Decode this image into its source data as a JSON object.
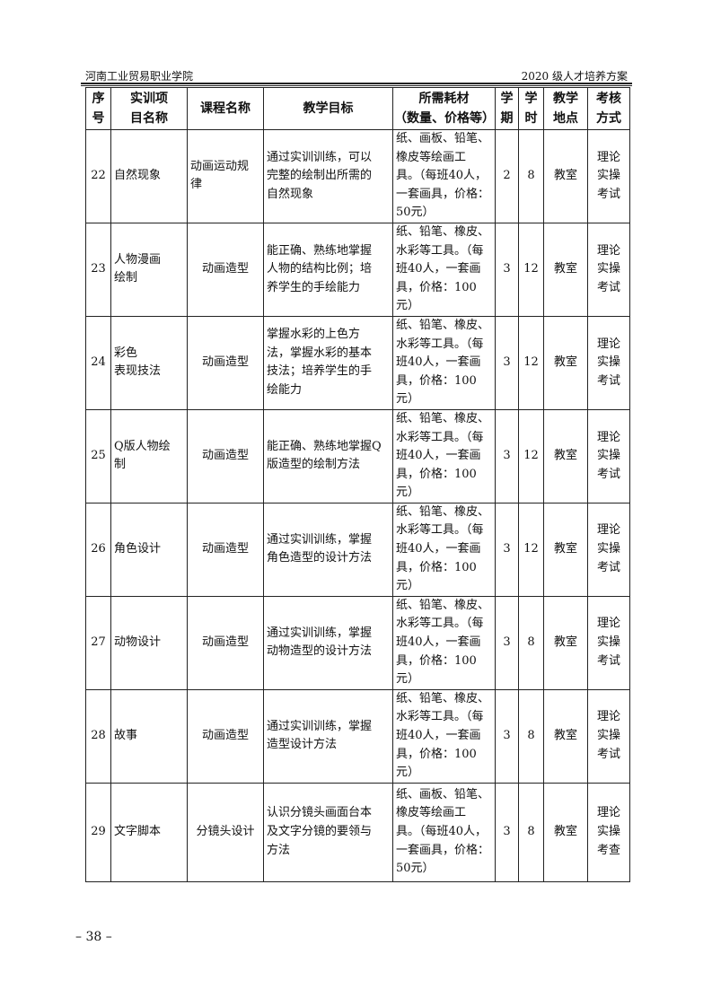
{
  "header": {
    "school": "河南工业贸易职业学院",
    "doc_title": "2020 级人才培养方案"
  },
  "table": {
    "columns": [
      "序\n号",
      "实训项\n目名称",
      "课程名称",
      "教学目标",
      "所需耗材\n（数量、价格等）",
      "学\n期",
      "学\n时",
      "教学\n地点",
      "考核\n方式"
    ],
    "rows": [
      {
        "no": "22",
        "project": "自然现象",
        "course": "动画运动规\n律",
        "goal": "通过实训训练，可以\n完整的绘制出所需的\n自然现象",
        "materials": "纸、画板、铅笔、\n橡皮等绘画工\n具。（每班40人，\n一套画具，价格：\n50元）",
        "term": "2",
        "hours": "8",
        "place": "教室",
        "exam": "理论\n实操\n考试"
      },
      {
        "no": "23",
        "project": "人物漫画\n绘制",
        "course": "动画造型",
        "goal": "能正确、熟练地掌握\n人物的结构比例；培\n养学生的手绘能力",
        "materials": "纸、铅笔、橡皮、\n水彩等工具。（每\n班40人，一套画\n具，价格：100\n元）",
        "term": "3",
        "hours": "12",
        "place": "教室",
        "exam": "理论\n实操\n考试"
      },
      {
        "no": "24",
        "project": "彩色\n表现技法",
        "course": "动画造型",
        "goal": "掌握水彩的上色方\n法，掌握水彩的基本\n技法；培养学生的手\n绘能力",
        "materials": "纸、铅笔、橡皮、\n水彩等工具。（每\n班40人，一套画\n具，价格：100\n元）",
        "term": "3",
        "hours": "12",
        "place": "教室",
        "exam": "理论\n实操\n考试"
      },
      {
        "no": "25",
        "project": "Q版人物绘\n制",
        "course": "动画造型",
        "goal": "能正确、熟练地掌握Q\n版造型的绘制方法",
        "materials": "纸、铅笔、橡皮、\n水彩等工具。（每\n班40人，一套画\n具，价格：100\n元）",
        "term": "3",
        "hours": "12",
        "place": "教室",
        "exam": "理论\n实操\n考试"
      },
      {
        "no": "26",
        "project": "角色设计",
        "course": "动画造型",
        "goal": "通过实训训练，掌握\n角色造型的设计方法",
        "materials": "纸、铅笔、橡皮、\n水彩等工具。（每\n班40人，一套画\n具，价格：100\n元）",
        "term": "3",
        "hours": "12",
        "place": "教室",
        "exam": "理论\n实操\n考试"
      },
      {
        "no": "27",
        "project": "动物设计",
        "course": "动画造型",
        "goal": "通过实训训练，掌握\n动物造型的设计方法",
        "materials": "纸、铅笔、橡皮、\n水彩等工具。（每\n班40人，一套画\n具，价格：100\n元）",
        "term": "3",
        "hours": "8",
        "place": "教室",
        "exam": "理论\n实操\n考试"
      },
      {
        "no": "28",
        "project": "故事",
        "course": "动画造型",
        "goal": "通过实训训练，掌握\n造型设计方法",
        "materials": "纸、铅笔、橡皮、\n水彩等工具。（每\n班40人，一套画\n具，价格：100\n元）",
        "term": "3",
        "hours": "8",
        "place": "教室",
        "exam": "理论\n实操\n考试"
      },
      {
        "no": "29",
        "project": "文字脚本",
        "course": "分镜头设计",
        "goal": "认识分镜头画面台本\n及文字分镜的要领与\n方法",
        "materials": "纸、画板、铅笔、\n橡皮等绘画工\n具。（每班40人，\n一套画具，价格：\n50元）",
        "term": "3",
        "hours": "8",
        "place": "教室",
        "exam": "理论\n实操\n考查"
      }
    ]
  },
  "footer": {
    "page": "– 38 –"
  }
}
